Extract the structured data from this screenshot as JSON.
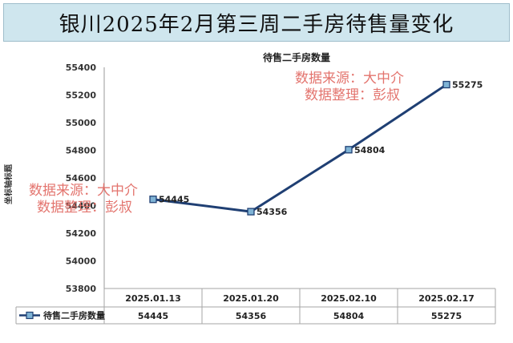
{
  "title": "银川2025年2月第三周二手房待售量变化",
  "watermark": {
    "line1": "数据来源：大中介",
    "line2": "数据整理：彭叔"
  },
  "chart_data": {
    "type": "line",
    "title": "待售二手房数量",
    "xlabel": "",
    "ylabel": "坐标轴标题",
    "categories": [
      "2025.01.13",
      "2025.01.20",
      "2025.02.10",
      "2025.02.17"
    ],
    "series": [
      {
        "name": "待售二手房数量",
        "values": [
          54445,
          54356,
          54804,
          55275
        ],
        "color": "#1f3f73"
      }
    ],
    "ylim": [
      53800,
      55400
    ],
    "yticks": [
      53800,
      54000,
      54200,
      54400,
      54600,
      54800,
      55000,
      55200,
      55400
    ],
    "grid": false,
    "legend": "data-table"
  }
}
